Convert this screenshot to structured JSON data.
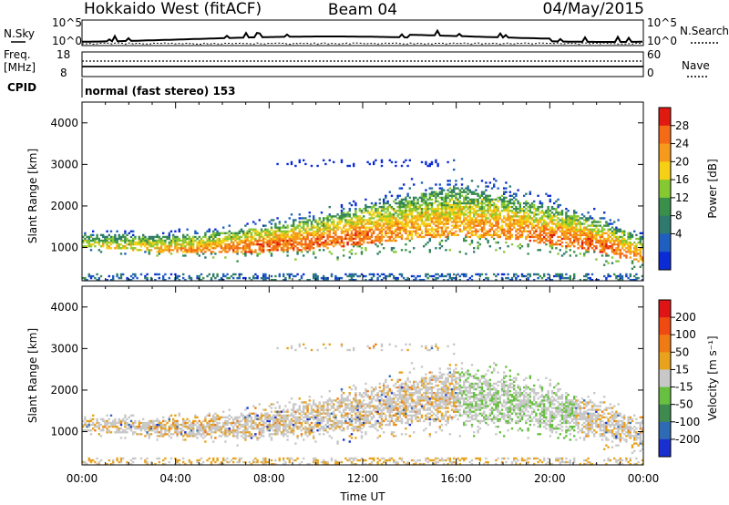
{
  "header": {
    "left_title": "Hokkaido West (fitACF)",
    "center_title": "Beam 04",
    "right_title": "04/May/2015"
  },
  "panels_top": {
    "nsky_label": "N.Sky",
    "nsearch_label": "N.Search",
    "freq_label_1": "Freq.",
    "freq_label_2": "[MHz]",
    "nave_label": "Nave",
    "cpid_label": "CPID",
    "cpid_text": "normal (fast stereo) 153",
    "nsky_ticks": [
      "10^5",
      "10^0"
    ],
    "nsearch_ticks": [
      "10^5",
      "10^0"
    ],
    "freq_ticks": [
      "18",
      "8"
    ],
    "nave_ticks": [
      "60",
      "0"
    ]
  },
  "colors": {
    "power_scale": [
      "#0b2bd6",
      "#1f5fbf",
      "#2f7a6f",
      "#3a8f4a",
      "#86c832",
      "#f5d014",
      "#f59a1a",
      "#f46a16",
      "#e01a10"
    ],
    "velocity_scale": [
      "#1a2fcf",
      "#2f6ab4",
      "#3f8a4f",
      "#67c040",
      "#c8c8c8",
      "#e8a21c",
      "#f07a14",
      "#ee4a12",
      "#e01414"
    ]
  },
  "chart_data": [
    {
      "type": "heatmap",
      "name": "power",
      "ylabel": "Slant Range [km]",
      "yticks": [
        1000,
        2000,
        3000,
        4000
      ],
      "ylim": [
        200,
        4500
      ],
      "xticks": [
        "00:00",
        "04:00",
        "08:00",
        "12:00",
        "16:00",
        "20:00",
        "00:00"
      ],
      "xlim_hours": [
        0,
        24
      ],
      "colorbar_label": "Power [dB]",
      "colorbar_ticks": [
        "28",
        "24",
        "20",
        "16",
        "12",
        "8",
        "4"
      ],
      "bands": [
        {
          "t": 0,
          "center": 1150,
          "half": 160,
          "level": 0.55
        },
        {
          "t": 2,
          "center": 1100,
          "half": 180,
          "level": 0.6
        },
        {
          "t": 4,
          "center": 1050,
          "half": 220,
          "level": 0.7
        },
        {
          "t": 6,
          "center": 1100,
          "half": 260,
          "level": 0.78
        },
        {
          "t": 8,
          "center": 1200,
          "half": 320,
          "level": 0.82
        },
        {
          "t": 10,
          "center": 1300,
          "half": 380,
          "level": 0.82
        },
        {
          "t": 12,
          "center": 1500,
          "half": 450,
          "level": 0.8
        },
        {
          "t": 14,
          "center": 1700,
          "half": 520,
          "level": 0.72
        },
        {
          "t": 16,
          "center": 1850,
          "half": 600,
          "level": 0.7
        },
        {
          "t": 18,
          "center": 1700,
          "half": 520,
          "level": 0.75
        },
        {
          "t": 20,
          "center": 1500,
          "half": 450,
          "level": 0.8
        },
        {
          "t": 22,
          "center": 1250,
          "half": 380,
          "level": 0.82
        },
        {
          "t": 24,
          "center": 900,
          "half": 300,
          "level": 0.75
        }
      ]
    },
    {
      "type": "heatmap",
      "name": "velocity",
      "ylabel": "Slant Range [km]",
      "yticks": [
        1000,
        2000,
        3000,
        4000
      ],
      "ylim": [
        200,
        4500
      ],
      "xticks": [
        "00:00",
        "04:00",
        "08:00",
        "12:00",
        "16:00",
        "20:00",
        "00:00"
      ],
      "xlim_hours": [
        0,
        24
      ],
      "xlabel": "Time UT",
      "colorbar_label": "Velocity [m s⁻¹]",
      "colorbar_ticks": [
        "200",
        "100",
        "50",
        "15",
        "-15",
        "-50",
        "-100",
        "-200"
      ]
    }
  ]
}
